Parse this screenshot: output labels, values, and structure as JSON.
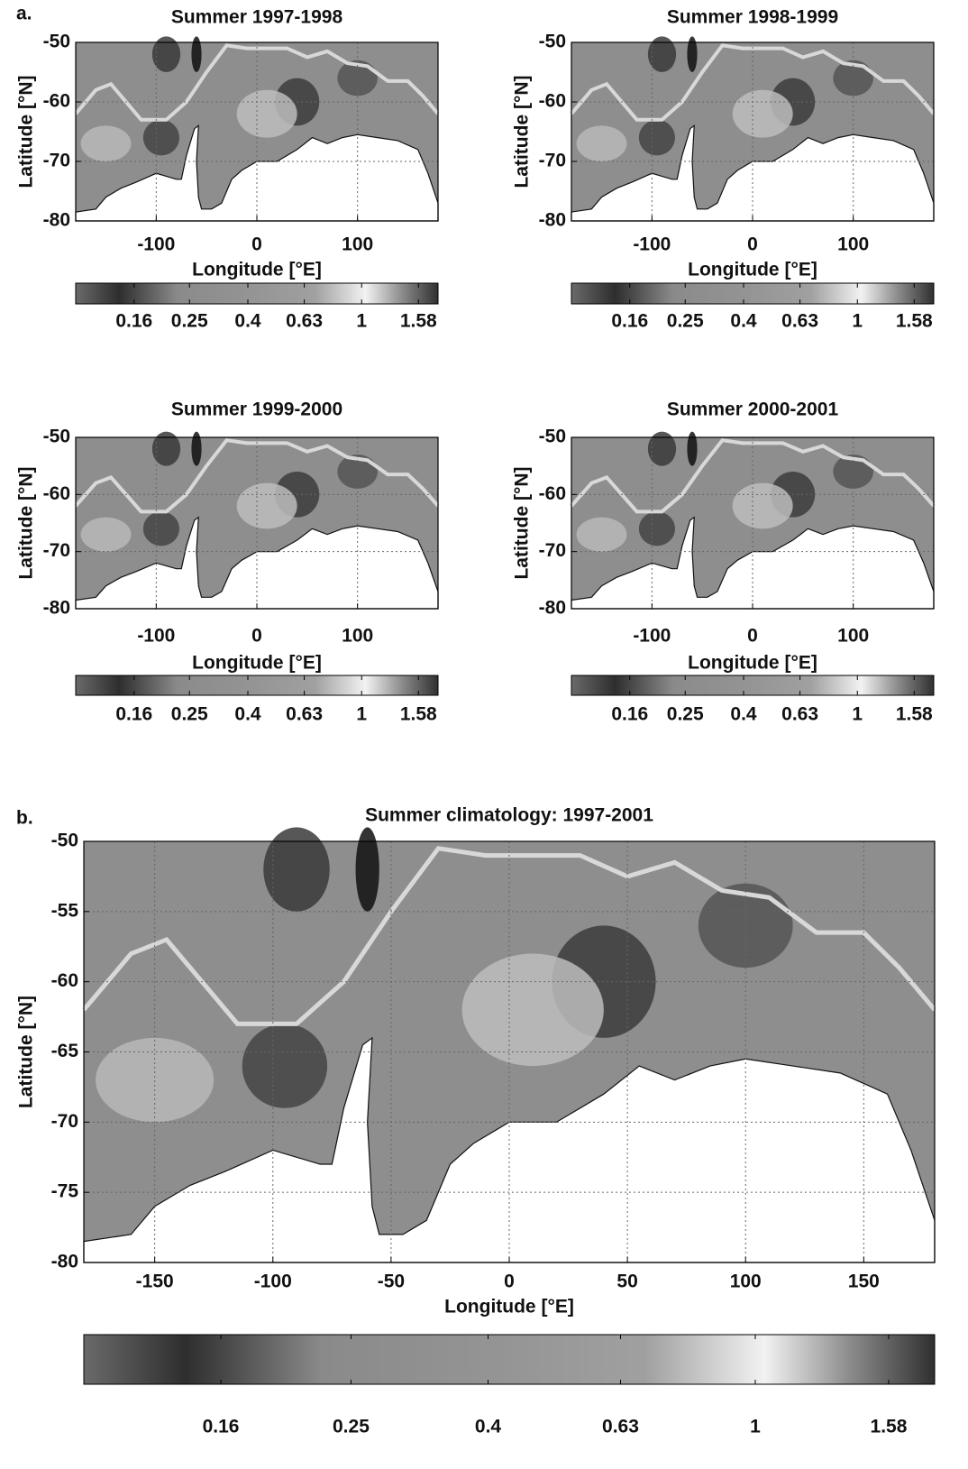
{
  "chart_data": [
    {
      "type": "heatmap",
      "panel_label": "a.",
      "title": "Summer 1997-1998",
      "xlabel": "Longitude [°E]",
      "ylabel": "Latitude [°N]",
      "xlim": [
        -180,
        180
      ],
      "ylim": [
        -80,
        -50
      ],
      "xticks": [
        -100,
        0,
        100
      ],
      "yticks": [
        -80,
        -70,
        -60,
        -50
      ],
      "grid": true,
      "colorbar": {
        "lim": [
          0.1,
          1.85
        ],
        "log": true,
        "ticks": [
          0.16,
          0.25,
          0.4,
          0.63,
          1,
          1.58
        ]
      }
    },
    {
      "type": "heatmap",
      "title": "Summer 1998-1999",
      "xlabel": "Longitude [°E]",
      "ylabel": "Latitude [°N]",
      "xlim": [
        -180,
        180
      ],
      "ylim": [
        -80,
        -50
      ],
      "xticks": [
        -100,
        0,
        100
      ],
      "yticks": [
        -80,
        -70,
        -60,
        -50
      ],
      "grid": true,
      "colorbar": {
        "lim": [
          0.1,
          1.85
        ],
        "log": true,
        "ticks": [
          0.16,
          0.25,
          0.4,
          0.63,
          1,
          1.58
        ]
      }
    },
    {
      "type": "heatmap",
      "title": "Summer 1999-2000",
      "xlabel": "Longitude [°E]",
      "ylabel": "Latitude [°N]",
      "xlim": [
        -180,
        180
      ],
      "ylim": [
        -80,
        -50
      ],
      "xticks": [
        -100,
        0,
        100
      ],
      "yticks": [
        -80,
        -70,
        -60,
        -50
      ],
      "grid": true,
      "colorbar": {
        "lim": [
          0.1,
          1.85
        ],
        "log": true,
        "ticks": [
          0.16,
          0.25,
          0.4,
          0.63,
          1,
          1.58
        ]
      }
    },
    {
      "type": "heatmap",
      "title": "Summer 2000-2001",
      "xlabel": "Longitude [°E]",
      "ylabel": "Latitude [°N]",
      "xlim": [
        -180,
        180
      ],
      "ylim": [
        -80,
        -50
      ],
      "xticks": [
        -100,
        0,
        100
      ],
      "yticks": [
        -80,
        -70,
        -60,
        -50
      ],
      "grid": true,
      "colorbar": {
        "lim": [
          0.1,
          1.85
        ],
        "log": true,
        "ticks": [
          0.16,
          0.25,
          0.4,
          0.63,
          1,
          1.58
        ]
      }
    },
    {
      "type": "heatmap",
      "panel_label": "b.",
      "title": "Summer climatology: 1997-2001",
      "xlabel": "Longitude [°E]",
      "ylabel": "Latitude [°N]",
      "xlim": [
        -180,
        180
      ],
      "ylim": [
        -80,
        -50
      ],
      "xticks": [
        -150,
        -100,
        -50,
        0,
        50,
        100,
        150
      ],
      "yticks": [
        -80,
        -75,
        -70,
        -65,
        -60,
        -55,
        -50
      ],
      "grid": true,
      "colorbar": {
        "lim": [
          0.1,
          1.85
        ],
        "log": true,
        "ticks": [
          0.16,
          0.25,
          0.4,
          0.63,
          1,
          1.58
        ]
      }
    }
  ]
}
